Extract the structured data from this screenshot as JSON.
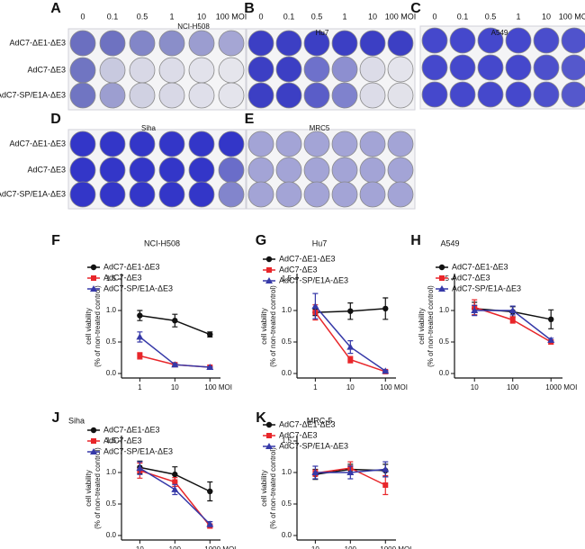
{
  "plates": [
    {
      "letter": "A",
      "title": "NCI-H508",
      "columns": [
        "0",
        "0.1",
        "0.5",
        "1",
        "10",
        "100 MOI"
      ],
      "rows": [
        "AdC7-ΔE1-ΔE3",
        "AdC7-ΔE3",
        "AdC7-SP/E1A-ΔE3"
      ],
      "well_colors": [
        [
          "#6b6fc0",
          "#6e72c1",
          "#8286c8",
          "#8a8ec9",
          "#9b9dd0",
          "#a5a6d4"
        ],
        [
          "#7075c2",
          "#c8c9df",
          "#d8d8e6",
          "#dcdce8",
          "#e2e2eb",
          "#e5e5ec"
        ],
        [
          "#7075c2",
          "#9c9ed0",
          "#d0d1e2",
          "#d8d8e6",
          "#dfdfea",
          "#e4e4ec"
        ]
      ]
    },
    {
      "letter": "B",
      "title": "Hu7",
      "columns": [
        "0",
        "0.1",
        "0.5",
        "1",
        "10",
        "100 MOI"
      ],
      "well_colors": [
        [
          "#3c3fc4",
          "#3c3fc4",
          "#3c3fc4",
          "#3c3fc4",
          "#3c3fc4",
          "#3c3fc4"
        ],
        [
          "#3c3fc4",
          "#3c3fc4",
          "#6e71cb",
          "#8d8fd0",
          "#dcdce8",
          "#e4e4ec"
        ],
        [
          "#3c3fc4",
          "#3c3fc4",
          "#5a5dc8",
          "#7f82cd",
          "#dcdce8",
          "#e2e2ea"
        ]
      ]
    },
    {
      "letter": "C",
      "title": "A549",
      "columns": [
        "0",
        "0.1",
        "0.5",
        "1",
        "10",
        "100 MOI"
      ],
      "well_colors": [
        [
          "#4548cc",
          "#4548cc",
          "#4548cc",
          "#4548cc",
          "#4a4dcc",
          "#5053cc"
        ],
        [
          "#4548cc",
          "#4548cc",
          "#4548cc",
          "#4548cc",
          "#4d50cc",
          "#5558cc"
        ],
        [
          "#4548cc",
          "#4548cc",
          "#4548cc",
          "#4548cc",
          "#4d50cc",
          "#5558cc"
        ]
      ]
    },
    {
      "letter": "D",
      "title": "Siha",
      "rows": [
        "AdC7-ΔE1-ΔE3",
        "AdC7-ΔE3",
        "AdC7-SP/E1A-ΔE3"
      ],
      "well_colors": [
        [
          "#3336c8",
          "#3336c8",
          "#3336c8",
          "#3336c8",
          "#3336c8",
          "#3336c8"
        ],
        [
          "#3336c8",
          "#3336c8",
          "#3336c8",
          "#3336c8",
          "#3336c8",
          "#6a6dc9"
        ],
        [
          "#3336c8",
          "#3336c8",
          "#3336c8",
          "#3336c8",
          "#3336c8",
          "#8285cc"
        ]
      ]
    },
    {
      "letter": "E",
      "title": "MRC5",
      "well_colors": [
        [
          "#a3a4d6",
          "#a3a4d6",
          "#a3a4d6",
          "#a3a4d6",
          "#a3a4d6",
          "#a3a4d6"
        ],
        [
          "#a3a4d6",
          "#a3a4d6",
          "#a3a4d6",
          "#a3a4d6",
          "#a3a4d6",
          "#a3a4d6"
        ],
        [
          "#a3a4d6",
          "#a3a4d6",
          "#a3a4d6",
          "#a3a4d6",
          "#a3a4d6",
          "#a3a4d6"
        ]
      ]
    }
  ],
  "chart_data": [
    {
      "type": "line",
      "letter": "F",
      "title": "NCI-H508",
      "ylabel": [
        "cell viability",
        "(% of non-treated control)"
      ],
      "xscale": "log",
      "x": [
        1,
        10,
        100
      ],
      "xlim": [
        0.3,
        200
      ],
      "xticks": [
        1,
        10,
        {
          "value": 100,
          "label": "100 MOI"
        }
      ],
      "ylim": [
        0,
        1.5
      ],
      "yticks": [
        {
          "value": 0,
          "label": "0.0"
        },
        {
          "value": 0.5,
          "label": "0.5"
        },
        {
          "value": 1,
          "label": "1.0"
        },
        {
          "value": 1.5,
          "label": "1.5"
        }
      ],
      "legend": "upper left",
      "series": [
        {
          "name": "AdC7-ΔE1-ΔE3",
          "color": "#111111",
          "marker": "circle",
          "values": [
            0.92,
            0.84,
            0.62
          ],
          "errors": [
            0.08,
            0.1,
            0.04
          ]
        },
        {
          "name": "AdC7-ΔE3",
          "color": "#e8262a",
          "marker": "square",
          "values": [
            0.28,
            0.14,
            0.1
          ],
          "errors": [
            0.05,
            0.02,
            0.01
          ]
        },
        {
          "name": "AdC7-SP/E1A-ΔE3",
          "color": "#3639a8",
          "marker": "triangle",
          "values": [
            0.58,
            0.14,
            0.1
          ],
          "errors": [
            0.08,
            0.02,
            0.01
          ]
        }
      ]
    },
    {
      "type": "line",
      "letter": "G",
      "title": "Hu7",
      "ylabel": [
        "cell viability",
        "(% of non-treated control)"
      ],
      "xscale": "log",
      "x": [
        1,
        10,
        100
      ],
      "xlim": [
        0.3,
        200
      ],
      "xticks": [
        1,
        10,
        {
          "value": 100,
          "label": "100 MOI"
        }
      ],
      "ylim": [
        0,
        1.5
      ],
      "yticks": [
        {
          "value": 0,
          "label": "0.0"
        },
        {
          "value": 0.5,
          "label": "0.5"
        },
        {
          "value": 1,
          "label": "1.0"
        },
        {
          "value": 1.5,
          "label": "1.5"
        }
      ],
      "legend": "upper left",
      "series": [
        {
          "name": "AdC7-ΔE1-ΔE3",
          "color": "#111111",
          "marker": "circle",
          "values": [
            0.97,
            0.99,
            1.03
          ],
          "errors": [
            0.05,
            0.13,
            0.17
          ]
        },
        {
          "name": "AdC7-ΔE3",
          "color": "#e8262a",
          "marker": "square",
          "values": [
            0.97,
            0.22,
            0.03
          ],
          "errors": [
            0.12,
            0.05,
            0.01
          ]
        },
        {
          "name": "AdC7-SP/E1A-ΔE3",
          "color": "#3639a8",
          "marker": "triangle",
          "values": [
            1.07,
            0.42,
            0.04
          ],
          "errors": [
            0.2,
            0.1,
            0.01
          ]
        }
      ]
    },
    {
      "type": "line",
      "letter": "H",
      "title": "A549",
      "ylabel": [
        "cell viability",
        "(% of non-treated control)"
      ],
      "xscale": "log",
      "x": [
        10,
        100,
        1000
      ],
      "xlim": [
        3,
        2000
      ],
      "xticks": [
        10,
        100,
        {
          "value": 1000,
          "label": "1000 MOI"
        }
      ],
      "ylim": [
        0,
        1.5
      ],
      "yticks": [
        {
          "value": 0,
          "label": "0.0"
        },
        {
          "value": 0.5,
          "label": "0.5"
        },
        {
          "value": 1,
          "label": "1.0"
        },
        {
          "value": 1.5,
          "label": "1.5"
        }
      ],
      "legend": "upper left",
      "series": [
        {
          "name": "AdC7-ΔE1-ΔE3",
          "color": "#111111",
          "marker": "circle",
          "values": [
            1.03,
            0.98,
            0.86
          ],
          "errors": [
            0.1,
            0.08,
            0.15
          ]
        },
        {
          "name": "AdC7-ΔE3",
          "color": "#e8262a",
          "marker": "square",
          "values": [
            1.05,
            0.85,
            0.5
          ],
          "errors": [
            0.12,
            0.05,
            0.03
          ]
        },
        {
          "name": "AdC7-SP/E1A-ΔE3",
          "color": "#3639a8",
          "marker": "triangle",
          "values": [
            1.0,
            1.0,
            0.53
          ],
          "errors": [
            0.08,
            0.07,
            0.03
          ]
        }
      ]
    },
    {
      "type": "line",
      "letter": "J",
      "title": "Siha",
      "ylabel": [
        "cell viability",
        "(% of non-treated control)"
      ],
      "xscale": "log",
      "x": [
        10,
        100,
        1000
      ],
      "xlim": [
        3,
        2000
      ],
      "xticks": [
        10,
        100,
        {
          "value": 1000,
          "label": "1000 MOI"
        }
      ],
      "ylim": [
        0,
        1.5
      ],
      "yticks": [
        {
          "value": 0,
          "label": "0.0"
        },
        {
          "value": 0.5,
          "label": "0.5"
        },
        {
          "value": 1,
          "label": "1.0"
        },
        {
          "value": 1.5,
          "label": "1.5"
        }
      ],
      "legend": "upper left",
      "series": [
        {
          "name": "AdC7-ΔE1-ΔE3",
          "color": "#111111",
          "marker": "circle",
          "values": [
            1.08,
            0.97,
            0.7
          ],
          "errors": [
            0.1,
            0.12,
            0.15
          ]
        },
        {
          "name": "AdC7-ΔE3",
          "color": "#e8262a",
          "marker": "square",
          "values": [
            1.03,
            0.85,
            0.15
          ],
          "errors": [
            0.12,
            0.07,
            0.03
          ]
        },
        {
          "name": "AdC7-SP/E1A-ΔE3",
          "color": "#3639a8",
          "marker": "triangle",
          "values": [
            1.07,
            0.73,
            0.18
          ],
          "errors": [
            0.1,
            0.08,
            0.04
          ]
        }
      ]
    },
    {
      "type": "line",
      "letter": "K",
      "title": "MRC-5",
      "ylabel": [
        "cell viability",
        "(% of non-treated control)"
      ],
      "xscale": "log",
      "x": [
        10,
        100,
        1000
      ],
      "xlim": [
        3,
        2000
      ],
      "xticks": [
        10,
        100,
        {
          "value": 1000,
          "label": "1000 MOI"
        }
      ],
      "ylim": [
        0,
        1.5
      ],
      "yticks": [
        {
          "value": 0,
          "label": "0.0"
        },
        {
          "value": 0.5,
          "label": "0.5"
        },
        {
          "value": 1,
          "label": "1.0"
        },
        {
          "value": 1.5,
          "label": "1.5"
        }
      ],
      "legend": "upper left",
      "series": [
        {
          "name": "AdC7-ΔE1-ΔE3",
          "color": "#111111",
          "marker": "circle",
          "values": [
            0.97,
            1.05,
            1.03
          ],
          "errors": [
            0.08,
            0.08,
            0.1
          ]
        },
        {
          "name": "AdC7-ΔE3",
          "color": "#e8262a",
          "marker": "square",
          "values": [
            0.99,
            1.07,
            0.8
          ],
          "errors": [
            0.05,
            0.1,
            0.15
          ]
        },
        {
          "name": "AdC7-SP/E1A-ΔE3",
          "color": "#3639a8",
          "marker": "triangle",
          "values": [
            1.0,
            1.0,
            1.05
          ],
          "errors": [
            0.1,
            0.1,
            0.12
          ]
        }
      ]
    }
  ]
}
